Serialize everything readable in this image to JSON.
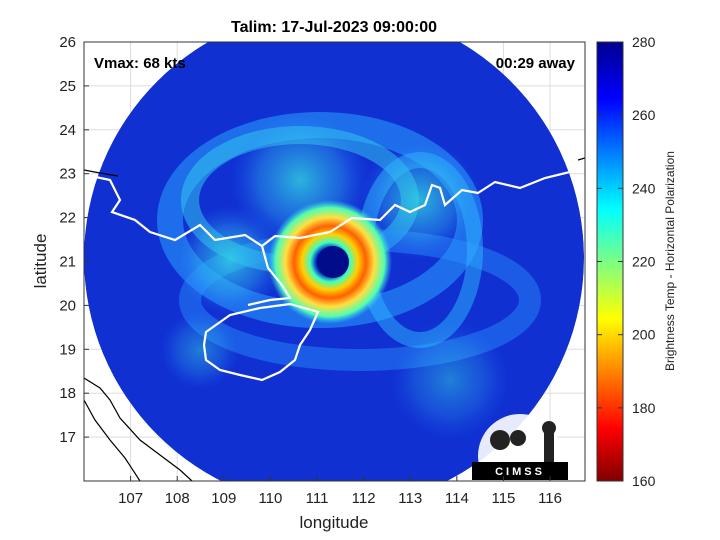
{
  "chart_data": {
    "type": "heatmap",
    "title": "Talim: 17-Jul-2023 09:00:00",
    "xlabel": "longitude",
    "ylabel": "latitude",
    "xlim": [
      106,
      116.75
    ],
    "ylim": [
      16,
      26
    ],
    "xticks": [
      "107",
      "108",
      "109",
      "110",
      "111",
      "112",
      "113",
      "114",
      "115",
      "116"
    ],
    "yticks": [
      "17",
      "18",
      "19",
      "20",
      "21",
      "22",
      "23",
      "24",
      "25",
      "26"
    ],
    "grid": true,
    "annotations": {
      "vmax": "Vmax: 68 kts",
      "time_offset": "00:29 away"
    },
    "storm_center": {
      "lon": 111.55,
      "lat": 20.95
    },
    "colorbar": {
      "label": "Brightness Temp - Horizontal Polarization",
      "range": [
        160,
        280
      ],
      "ticks": [
        "160",
        "180",
        "200",
        "220",
        "240",
        "260",
        "280"
      ],
      "colormap": "jet"
    },
    "logo_text": "CIMSS"
  },
  "colors": {
    "background": "#ffffff",
    "coastline": "#ffffff",
    "land_outline": "#000000",
    "grid": "#dddddd"
  }
}
